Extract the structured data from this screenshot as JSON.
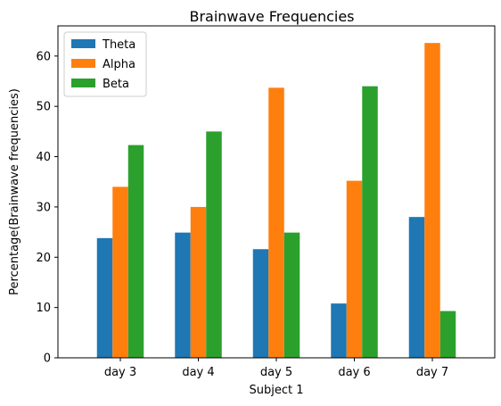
{
  "chart_data": {
    "type": "bar",
    "title": "Brainwave Frequencies",
    "xlabel": "Subject 1",
    "ylabel": "Percentage(Brainwave frequencies)",
    "categories": [
      "day 3",
      "day 4",
      "day 5",
      "day 6",
      "day 7"
    ],
    "series": [
      {
        "name": "Theta",
        "color": "#1f77b4",
        "values": [
          23.8,
          24.9,
          21.6,
          10.8,
          28.0
        ]
      },
      {
        "name": "Alpha",
        "color": "#ff7f0e",
        "values": [
          34.0,
          30.0,
          53.7,
          35.2,
          62.6
        ]
      },
      {
        "name": "Beta",
        "color": "#2ca02c",
        "values": [
          42.3,
          45.0,
          24.9,
          54.0,
          9.3
        ]
      }
    ],
    "ylim": [
      0,
      66
    ],
    "yticks": [
      0,
      10,
      20,
      30,
      40,
      50,
      60
    ],
    "legend_position": "top-left",
    "grid": false
  }
}
